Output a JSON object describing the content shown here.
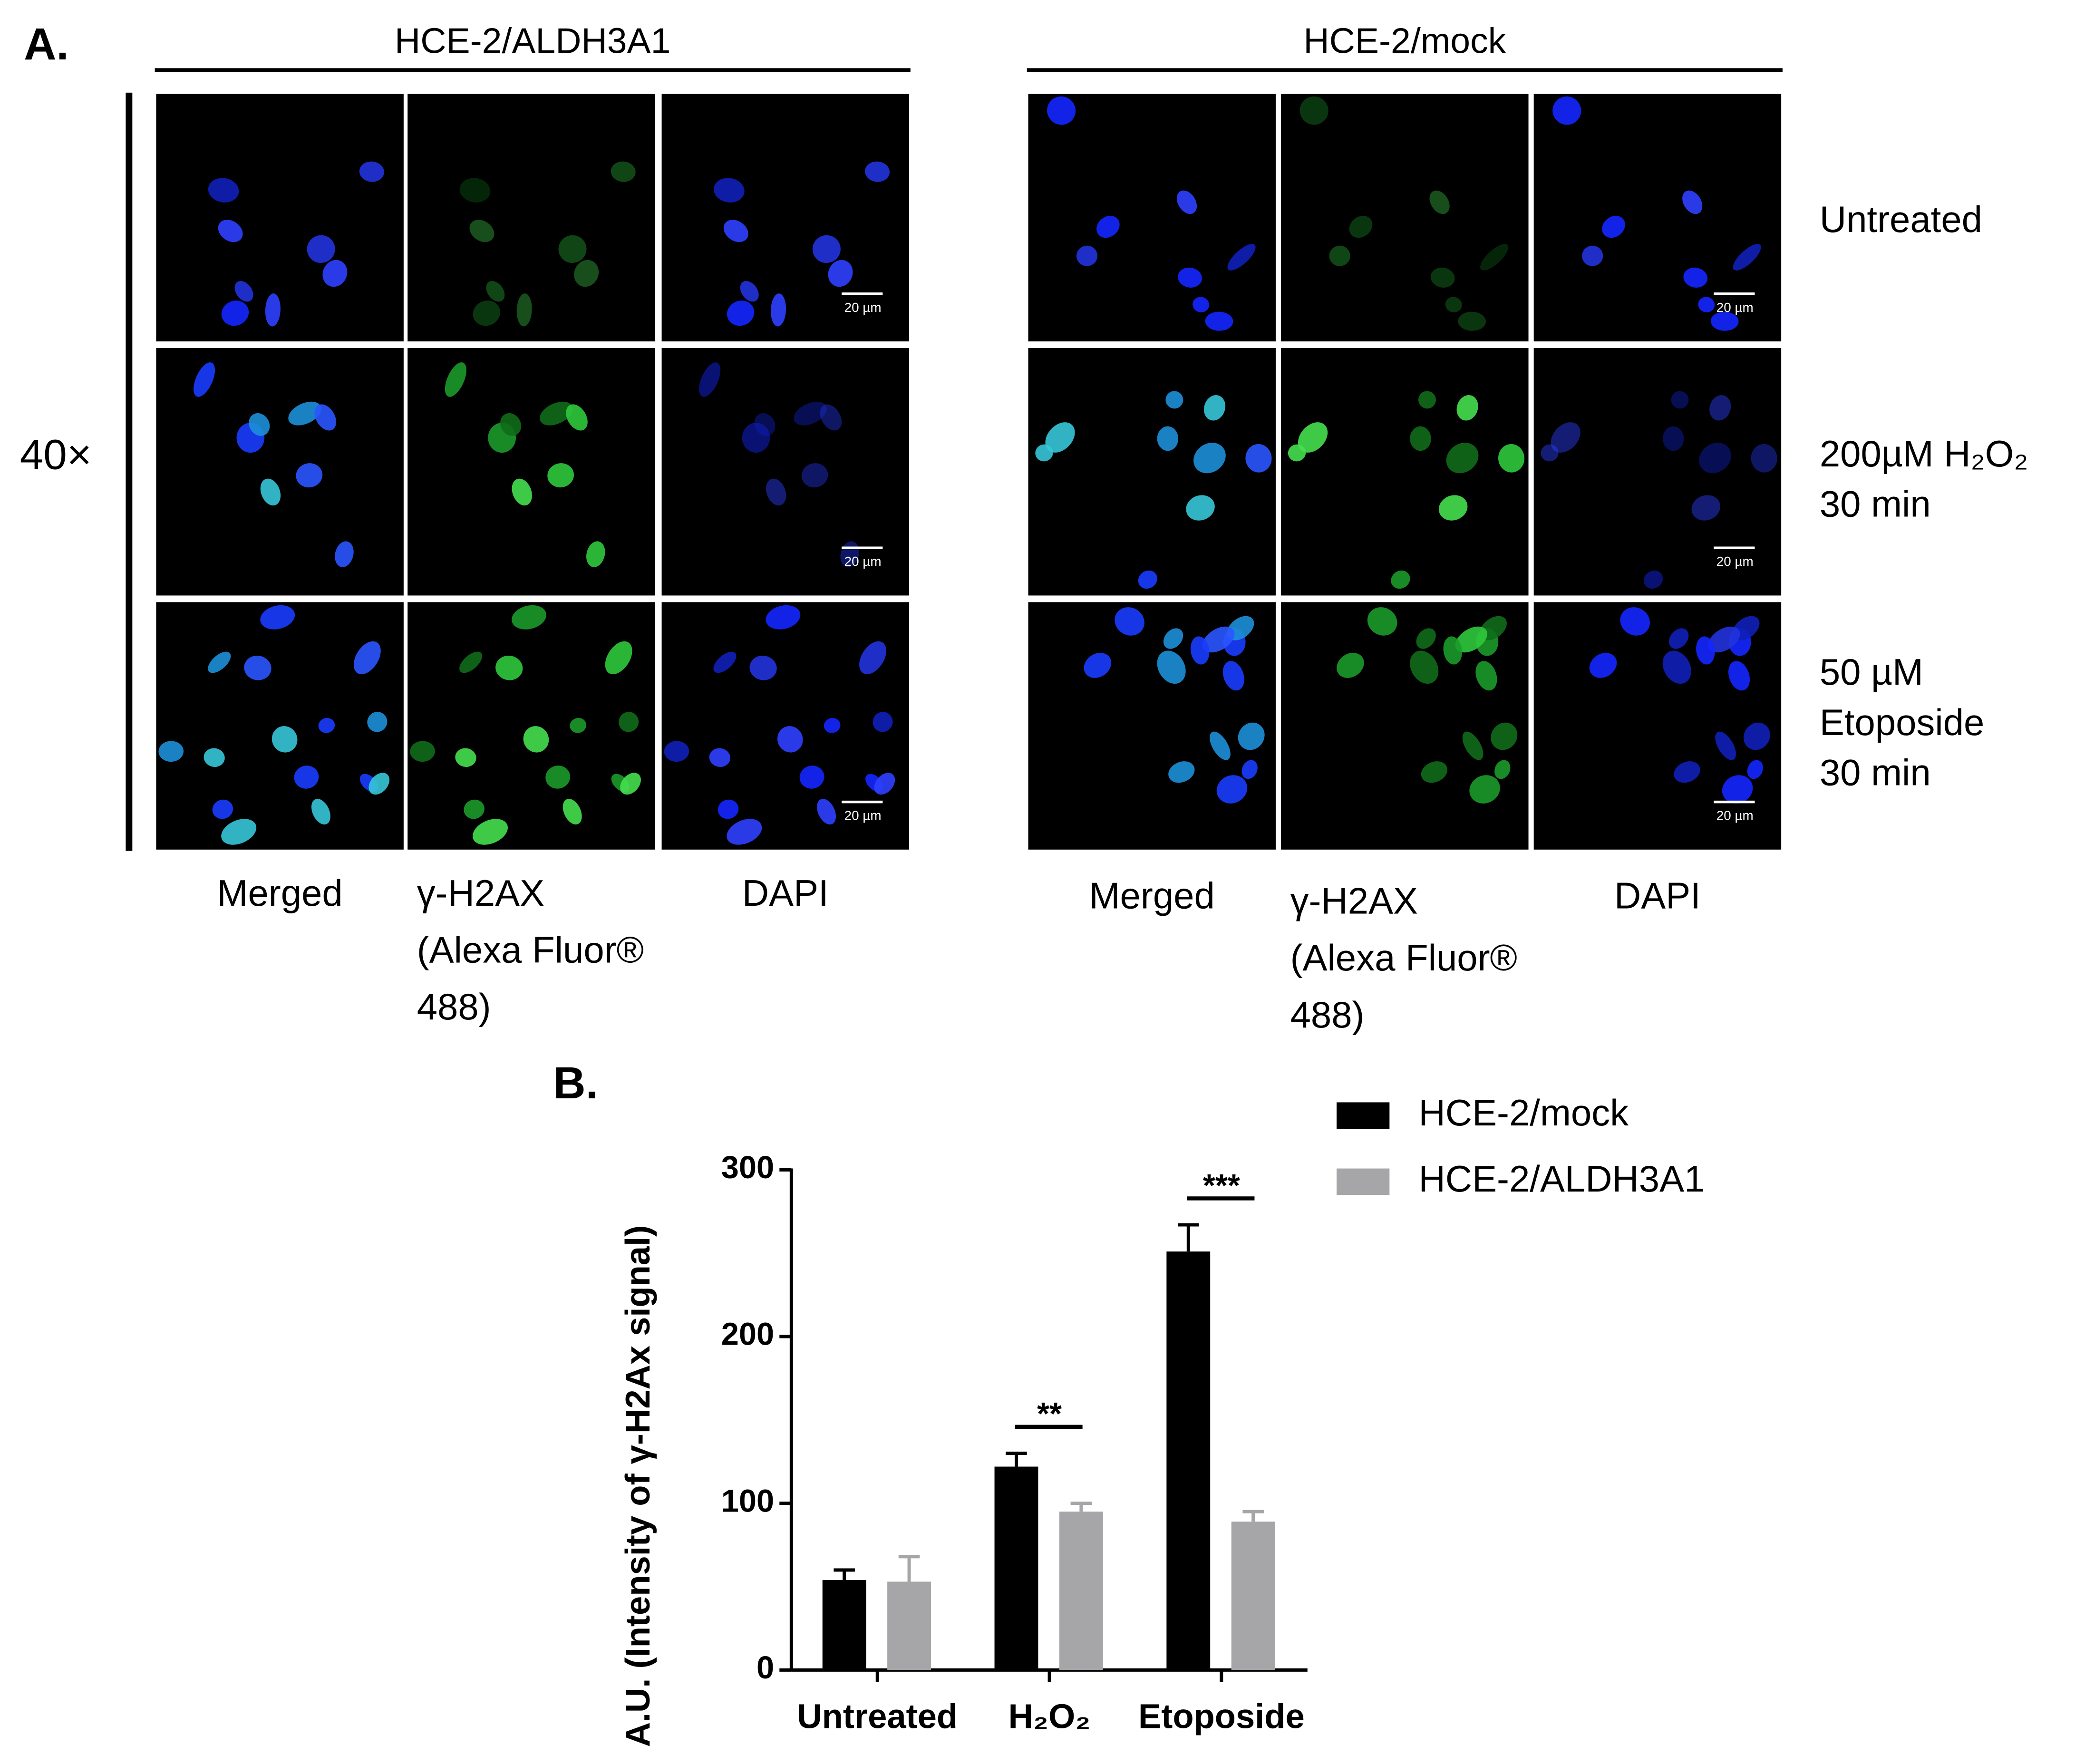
{
  "panel_a": {
    "label": "A.",
    "groups": [
      {
        "title": "HCE-2/ALDH3A1"
      },
      {
        "title": "HCE-2/mock"
      }
    ],
    "magnification": "40×",
    "columns": [
      [
        "Merged"
      ],
      [
        "γ-H2AX",
        "(Alexa Fluor®",
        "488)"
      ],
      [
        "DAPI"
      ]
    ],
    "rows": [
      [
        "Untreated"
      ],
      [
        "200µM H₂O₂",
        "30 min"
      ],
      [
        "50 µM",
        "Etoposide",
        "30 min"
      ]
    ],
    "scale_bar": "20 µm"
  },
  "chart_data": {
    "type": "bar",
    "label": "B.",
    "y_label": "A.U. (Intensity of γ-H2Ax signal)",
    "categories": [
      "Untreated",
      "H₂O₂",
      "Etoposide"
    ],
    "series": [
      {
        "name": "HCE-2/mock",
        "color": "#000000",
        "values": [
          54,
          122,
          251
        ],
        "errors": [
          6,
          8,
          16
        ]
      },
      {
        "name": "HCE-2/ALDH3A1",
        "color": "#a6a6a8",
        "values": [
          53,
          95,
          89
        ],
        "errors": [
          15,
          5,
          6
        ]
      }
    ],
    "ylim": [
      0,
      300
    ],
    "yticks": [
      0,
      100,
      200,
      300
    ],
    "annotations": [
      {
        "text": "**",
        "category": "H₂O₂"
      },
      {
        "text": "***",
        "category": "Etoposide"
      }
    ]
  }
}
